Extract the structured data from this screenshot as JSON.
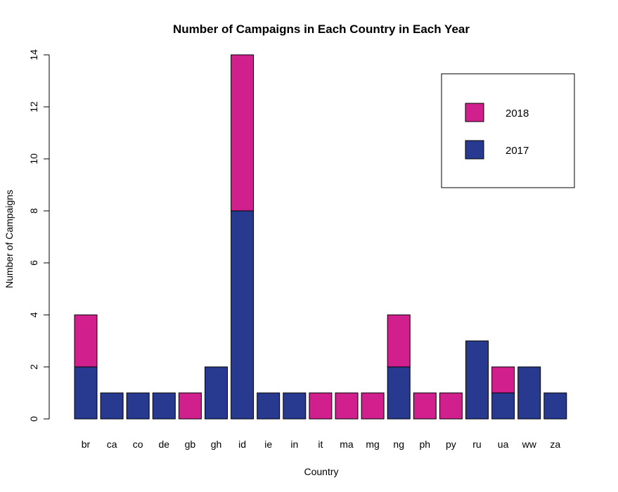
{
  "chart_data": {
    "type": "bar",
    "stacked": true,
    "title": "Number of Campaigns in Each Country in Each Year",
    "xlabel": "Country",
    "ylabel": "Number of Campaigns",
    "ylim": [
      0,
      14
    ],
    "yticks": [
      "0",
      "2",
      "4",
      "6",
      "8",
      "10",
      "12",
      "14"
    ],
    "categories": [
      "br",
      "ca",
      "co",
      "de",
      "gb",
      "gh",
      "id",
      "ie",
      "in",
      "it",
      "ma",
      "mg",
      "ng",
      "ph",
      "py",
      "ru",
      "ua",
      "ww",
      "za"
    ],
    "series": [
      {
        "name": "2017",
        "color": "#283a8f",
        "values": [
          2,
          1,
          1,
          1,
          0,
          2,
          8,
          1,
          1,
          0,
          0,
          0,
          2,
          0,
          0,
          3,
          1,
          2,
          1
        ]
      },
      {
        "name": "2018",
        "color": "#d11f8e",
        "values": [
          2,
          0,
          0,
          0,
          1,
          0,
          6,
          0,
          0,
          1,
          1,
          1,
          2,
          1,
          1,
          0,
          1,
          0,
          0
        ]
      }
    ],
    "legend": {
      "placement": "top-right",
      "entries": [
        {
          "label": "2018",
          "color": "#d11f8e"
        },
        {
          "label": "2017",
          "color": "#283a8f"
        }
      ]
    },
    "grid": false
  }
}
